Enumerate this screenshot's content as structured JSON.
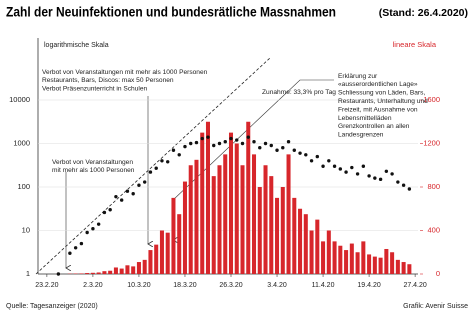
{
  "chart_data": {
    "type": "bar",
    "title": "Zahl der Neuinfektionen und bundesrätliche Massnahmen",
    "subtitle": "(Stand: 26.4.2020)",
    "y_axis_label": "logarithmische Skala",
    "y2_axis_label": "lineare Skala",
    "log_y": true,
    "grid": true,
    "categories": [
      "23.2.20",
      null,
      null,
      null,
      null,
      null,
      null,
      null,
      "2.3.20",
      null,
      null,
      null,
      null,
      null,
      null,
      null,
      "10.3.20",
      null,
      null,
      null,
      null,
      null,
      null,
      null,
      "18.3.20",
      null,
      null,
      null,
      null,
      null,
      null,
      null,
      "26.3.20",
      null,
      null,
      null,
      null,
      null,
      null,
      null,
      "3.4.20",
      null,
      null,
      null,
      null,
      null,
      null,
      null,
      "11.4.20",
      null,
      null,
      null,
      null,
      null,
      null,
      null,
      "19.4.20",
      null,
      null,
      null,
      null,
      null,
      null,
      null,
      "27.4.20"
    ],
    "series": [
      {
        "type": "bar",
        "axis": "y2",
        "color": "#d7262b",
        "values": [
          0,
          0,
          1,
          0,
          3,
          4,
          5,
          9,
          11,
          14,
          26,
          30,
          60,
          50,
          80,
          70,
          110,
          130,
          220,
          270,
          400,
          380,
          700,
          550,
          850,
          1000,
          1050,
          1300,
          1400,
          900,
          1000,
          1100,
          1300,
          1200,
          1000,
          1400,
          1100,
          800,
          1000,
          900,
          700,
          800,
          1100,
          700,
          600,
          550,
          400,
          500,
          300,
          400,
          300,
          260,
          220,
          280,
          200,
          300,
          180,
          160,
          150,
          230,
          200,
          130,
          110,
          90,
          null
        ]
      },
      {
        "type": "scatter",
        "color": "#111111",
        "values": [
          null,
          null,
          1,
          null,
          3,
          4,
          5,
          9,
          11,
          14,
          26,
          30,
          60,
          50,
          80,
          70,
          110,
          130,
          220,
          270,
          400,
          380,
          700,
          550,
          850,
          1000,
          1050,
          1300,
          1400,
          900,
          1000,
          1100,
          1300,
          1200,
          1000,
          1400,
          1100,
          800,
          1000,
          900,
          700,
          800,
          1100,
          700,
          600,
          550,
          400,
          500,
          300,
          400,
          300,
          260,
          220,
          280,
          200,
          300,
          180,
          160,
          150,
          230,
          200,
          130,
          110,
          90,
          null
        ]
      }
    ],
    "ylim": [
      1,
      10000
    ],
    "yticks": [
      1,
      10,
      100,
      1000,
      10000
    ],
    "y2lim": [
      0,
      1600
    ],
    "y2ticks": [
      0,
      400,
      800,
      1200,
      1600
    ],
    "annotations": [
      [
        "Verbot von Veranstaltungen mit mehr als 1000 Personen",
        "Restaurants, Bars, Discos: max 50 Personen",
        "Verbot Präsenzunterricht in Schulen"
      ],
      [
        "Verbot von Veranstaltungen",
        "mit mehr als 1000 Personen"
      ],
      [
        "Zunahme: 33,3% pro Tag"
      ],
      [
        "Erklärung zur",
        "«ausserordentlichen Lage»",
        "Schliessung von Läden, Bars,",
        "Restaurants, Unterhaltung und",
        "Freizeit, mit Ausnahme von",
        "Lebensmittelläden",
        "Grenzkontrollen an allen",
        "Landesgrenzen"
      ]
    ],
    "source": "Quelle: Tagesanzeiger (2020)",
    "credit": "Grafik: Avenir Suisse"
  }
}
